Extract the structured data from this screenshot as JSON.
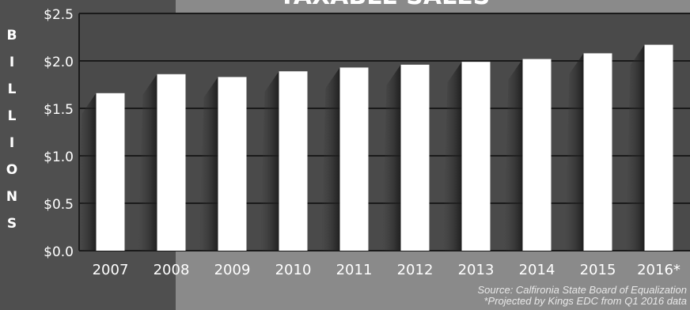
{
  "chart_data": {
    "type": "bar",
    "title": "TAXABLE SALES",
    "ylabel": "BILLIONS",
    "xlabel": "",
    "categories": [
      "2007",
      "2008",
      "2009",
      "2010",
      "2011",
      "2012",
      "2013",
      "2014",
      "2015",
      "2016*"
    ],
    "values": [
      1.66,
      1.86,
      1.83,
      1.89,
      1.93,
      1.96,
      1.99,
      2.02,
      2.08,
      2.17
    ],
    "ylim": [
      0,
      2.5
    ],
    "yticks": [
      0,
      0.5,
      1.0,
      1.5,
      2.0,
      2.5
    ],
    "ytick_labels": [
      "$0.0",
      "$0.5",
      "$1.0",
      "$1.5",
      "$2.0",
      "$2.5"
    ],
    "grid": true,
    "colors": {
      "bar": "#ffffff",
      "plot_bg": "#4a4a4a",
      "grid": "#1a1a1a"
    }
  },
  "footnotes": {
    "source": "Source: Calfironia State Board of Equalization",
    "projection": "*Projected by Kings EDC from Q1 2016 data"
  }
}
